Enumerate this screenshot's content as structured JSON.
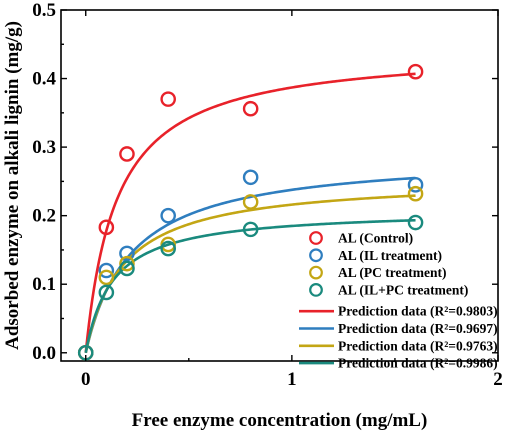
{
  "chart_data": {
    "type": "scatter",
    "xlabel": "Free enzyme concentration (mg/mL)",
    "ylabel": "Adsorbed enzyme on alkali lignin (mg/g)",
    "xlim": [
      -0.12,
      2.0
    ],
    "ylim": [
      -0.012,
      0.5
    ],
    "xticks": [
      0,
      1,
      2
    ],
    "xtick_labels": [
      "0",
      "1",
      "2"
    ],
    "yticks": [
      0.0,
      0.1,
      0.2,
      0.3,
      0.4,
      0.5
    ],
    "ytick_labels": [
      "0.0",
      "0.1",
      "0.2",
      "0.3",
      "0.4",
      "0.5"
    ],
    "grid": false,
    "legend_position": "bottom-right",
    "series": [
      {
        "name": "AL (Control)",
        "color": "#e8222a",
        "x": [
          0,
          0.1,
          0.2,
          0.4,
          0.8,
          1.6
        ],
        "y": [
          0.0,
          0.183,
          0.29,
          0.37,
          0.356,
          0.41
        ]
      },
      {
        "name": "AL (IL treatment)",
        "color": "#2f7ebf",
        "x": [
          0,
          0.1,
          0.2,
          0.4,
          0.8,
          1.6
        ],
        "y": [
          0.0,
          0.12,
          0.145,
          0.2,
          0.256,
          0.245
        ]
      },
      {
        "name": "AL (PC treatment)",
        "color": "#c3a614",
        "x": [
          0,
          0.1,
          0.2,
          0.4,
          0.8,
          1.6
        ],
        "y": [
          0.0,
          0.11,
          0.13,
          0.158,
          0.22,
          0.232
        ]
      },
      {
        "name": "AL (IL+PC treatment)",
        "color": "#1a8a7e",
        "x": [
          0,
          0.1,
          0.2,
          0.4,
          0.8,
          1.6
        ],
        "y": [
          0.0,
          0.088,
          0.123,
          0.152,
          0.18,
          0.19
        ]
      }
    ],
    "fits": [
      {
        "name": "Prediction data (R²=0.9803)",
        "color": "#e8222a",
        "qmax": 0.445,
        "k": 0.15,
        "x_range": [
          0,
          1.6
        ]
      },
      {
        "name": "Prediction data (R²=0.9697)",
        "color": "#2f7ebf",
        "qmax": 0.29,
        "k": 0.22,
        "x_range": [
          0,
          1.6
        ]
      },
      {
        "name": "Prediction data (R²=0.9763)",
        "color": "#c3a614",
        "qmax": 0.255,
        "k": 0.18,
        "x_range": [
          0,
          1.6
        ]
      },
      {
        "name": "Prediction data (R²=0.9986)",
        "color": "#1a8a7e",
        "qmax": 0.209,
        "k": 0.13,
        "x_range": [
          0,
          1.6
        ]
      }
    ]
  }
}
